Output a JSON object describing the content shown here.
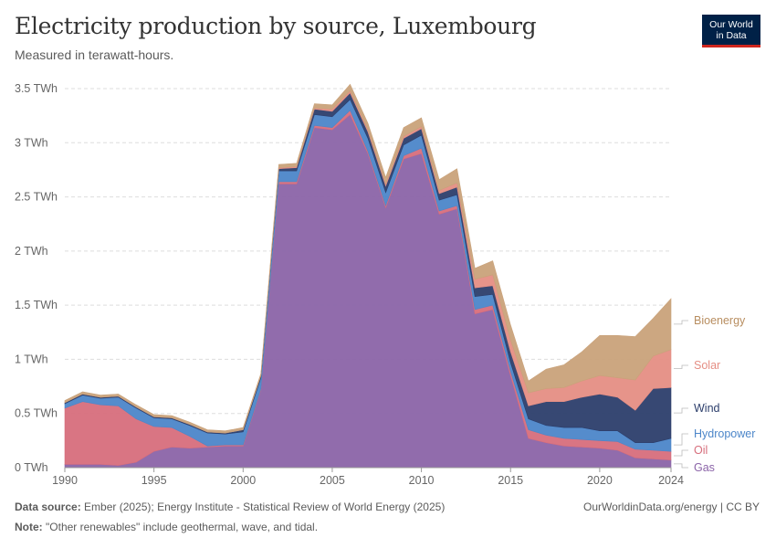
{
  "title": "Electricity production by source, Luxembourg",
  "subtitle": "Measured in terawatt-hours.",
  "logo": {
    "line1": "Our World",
    "line2": "in Data"
  },
  "footer": {
    "source_label": "Data source:",
    "source_text": "Ember (2025); Energy Institute - Statistical Review of World Energy (2025)",
    "note_label": "Note:",
    "note_text": "\"Other renewables\" include geothermal, wave, and tidal.",
    "url": "OurWorldinData.org/energy | CC BY"
  },
  "chart_data": {
    "type": "area",
    "stacked": true,
    "xlim": [
      1990,
      2024
    ],
    "ylim": [
      0,
      3.5
    ],
    "unit": "TWh",
    "yticks": [
      {
        "value": 0,
        "label": "0 TWh"
      },
      {
        "value": 0.5,
        "label": "0.5 TWh"
      },
      {
        "value": 1,
        "label": "1 TWh"
      },
      {
        "value": 1.5,
        "label": "1.5 TWh"
      },
      {
        "value": 2,
        "label": "2 TWh"
      },
      {
        "value": 2.5,
        "label": "2.5 TWh"
      },
      {
        "value": 3,
        "label": "3 TWh"
      },
      {
        "value": 3.5,
        "label": "3.5 TWh"
      }
    ],
    "xticks": [
      1990,
      1995,
      2000,
      2005,
      2010,
      2015,
      2020,
      2024
    ],
    "x": [
      1990,
      1991,
      1992,
      1993,
      1994,
      1995,
      1996,
      1997,
      1998,
      1999,
      2000,
      2001,
      2002,
      2003,
      2004,
      2005,
      2006,
      2007,
      2008,
      2009,
      2010,
      2011,
      2012,
      2013,
      2014,
      2015,
      2016,
      2017,
      2018,
      2019,
      2020,
      2021,
      2022,
      2023,
      2024
    ],
    "series": [
      {
        "name": "Gas",
        "color": "#8b64a8",
        "values": [
          0.03,
          0.03,
          0.03,
          0.02,
          0.05,
          0.15,
          0.19,
          0.18,
          0.19,
          0.2,
          0.2,
          0.72,
          2.62,
          2.62,
          3.14,
          3.12,
          3.26,
          2.9,
          2.4,
          2.85,
          2.9,
          2.34,
          2.39,
          1.42,
          1.46,
          0.85,
          0.27,
          0.23,
          0.2,
          0.19,
          0.18,
          0.16,
          0.09,
          0.08,
          0.07
        ]
      },
      {
        "name": "Oil",
        "color": "#d76e7c",
        "values": [
          0.52,
          0.58,
          0.55,
          0.55,
          0.4,
          0.23,
          0.18,
          0.11,
          0.01,
          0.01,
          0.01,
          0.01,
          0.02,
          0.02,
          0.02,
          0.02,
          0.04,
          0.02,
          0.02,
          0.03,
          0.05,
          0.03,
          0.03,
          0.04,
          0.04,
          0.04,
          0.08,
          0.07,
          0.07,
          0.07,
          0.07,
          0.08,
          0.08,
          0.08,
          0.08
        ]
      },
      {
        "name": "Hydropower",
        "color": "#4c86c9",
        "values": [
          0.04,
          0.06,
          0.06,
          0.08,
          0.1,
          0.08,
          0.08,
          0.1,
          0.12,
          0.1,
          0.12,
          0.1,
          0.1,
          0.1,
          0.1,
          0.1,
          0.1,
          0.12,
          0.12,
          0.1,
          0.12,
          0.1,
          0.1,
          0.12,
          0.1,
          0.08,
          0.1,
          0.09,
          0.1,
          0.11,
          0.09,
          0.1,
          0.06,
          0.07,
          0.12
        ]
      },
      {
        "name": "Wind",
        "color": "#2c3e6b",
        "values": [
          0.01,
          0.01,
          0.01,
          0.01,
          0.01,
          0.01,
          0.01,
          0.01,
          0.01,
          0.01,
          0.02,
          0.02,
          0.02,
          0.03,
          0.05,
          0.05,
          0.06,
          0.06,
          0.06,
          0.06,
          0.06,
          0.06,
          0.07,
          0.08,
          0.08,
          0.1,
          0.12,
          0.22,
          0.24,
          0.28,
          0.34,
          0.31,
          0.3,
          0.5,
          0.47
        ]
      },
      {
        "name": "Solar",
        "color": "#e58e84",
        "values": [
          0,
          0,
          0,
          0,
          0,
          0,
          0,
          0,
          0,
          0,
          0,
          0,
          0.01,
          0.01,
          0.01,
          0.02,
          0.02,
          0.02,
          0.02,
          0.02,
          0.02,
          0.03,
          0.04,
          0.08,
          0.1,
          0.11,
          0.12,
          0.12,
          0.13,
          0.15,
          0.17,
          0.18,
          0.28,
          0.3,
          0.35
        ]
      },
      {
        "name": "Bioenergy",
        "color": "#c9a27a",
        "values": [
          0.02,
          0.02,
          0.02,
          0.02,
          0.02,
          0.02,
          0.02,
          0.02,
          0.02,
          0.02,
          0.02,
          0.02,
          0.03,
          0.03,
          0.04,
          0.04,
          0.06,
          0.06,
          0.06,
          0.08,
          0.08,
          0.1,
          0.13,
          0.1,
          0.13,
          0.14,
          0.11,
          0.18,
          0.21,
          0.27,
          0.37,
          0.39,
          0.4,
          0.35,
          0.47
        ]
      }
    ]
  }
}
